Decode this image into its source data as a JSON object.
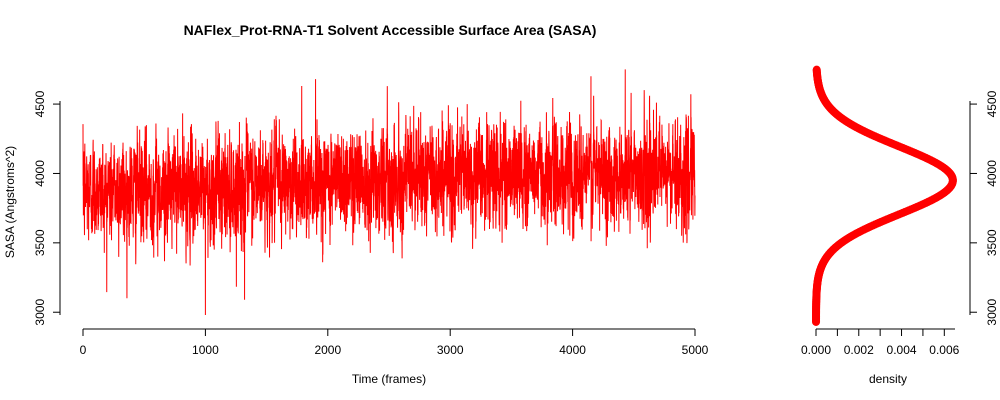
{
  "chart_data": [
    {
      "type": "line",
      "title": "NAFlex_Prot-RNA-T1 Solvent Accessible Surface Area (SASA)",
      "xlabel": "Time (frames)",
      "ylabel": "SASA (Angstroms^2)",
      "xlim": [
        0,
        5000
      ],
      "ylim": [
        2980,
        4760
      ],
      "x_ticks": [
        0,
        1000,
        2000,
        3000,
        4000,
        5000
      ],
      "y_ticks": [
        3000,
        3500,
        4000,
        4500
      ],
      "grid": false,
      "color": "#ff0000",
      "series": [
        {
          "frames": 5000,
          "mean": 3950,
          "min": 2980,
          "max": 4750,
          "trend": {
            "x": [
              0,
              1000,
              2000,
              3000,
              4000,
              5000
            ],
            "y": [
              3870,
              3880,
              3960,
              3990,
              4000,
              3990
            ]
          },
          "extremes": [
            {
              "x": 1000,
              "y": 2980
            },
            {
              "x": 1320,
              "y": 3090
            },
            {
              "x": 1900,
              "y": 4680
            },
            {
              "x": 4430,
              "y": 4750
            },
            {
              "x": 4150,
              "y": 4700
            }
          ]
        }
      ]
    },
    {
      "type": "scatter",
      "xlabel": "density",
      "ylabel": "",
      "xlim": [
        0,
        0.0065
      ],
      "ylim": [
        2980,
        4760
      ],
      "x_ticks": [
        "0.000",
        "0.002",
        "0.004",
        "0.006"
      ],
      "x_minor_ticks": [
        0.001,
        0.003,
        0.005
      ],
      "y_ticks": [
        3000,
        3500,
        4000,
        4500
      ],
      "y_axis_side": "right",
      "color": "#ff0000",
      "density": {
        "mean": 3950,
        "sd": 245,
        "peak": 0.0064,
        "y_min": 2930,
        "y_max": 4750
      }
    }
  ]
}
